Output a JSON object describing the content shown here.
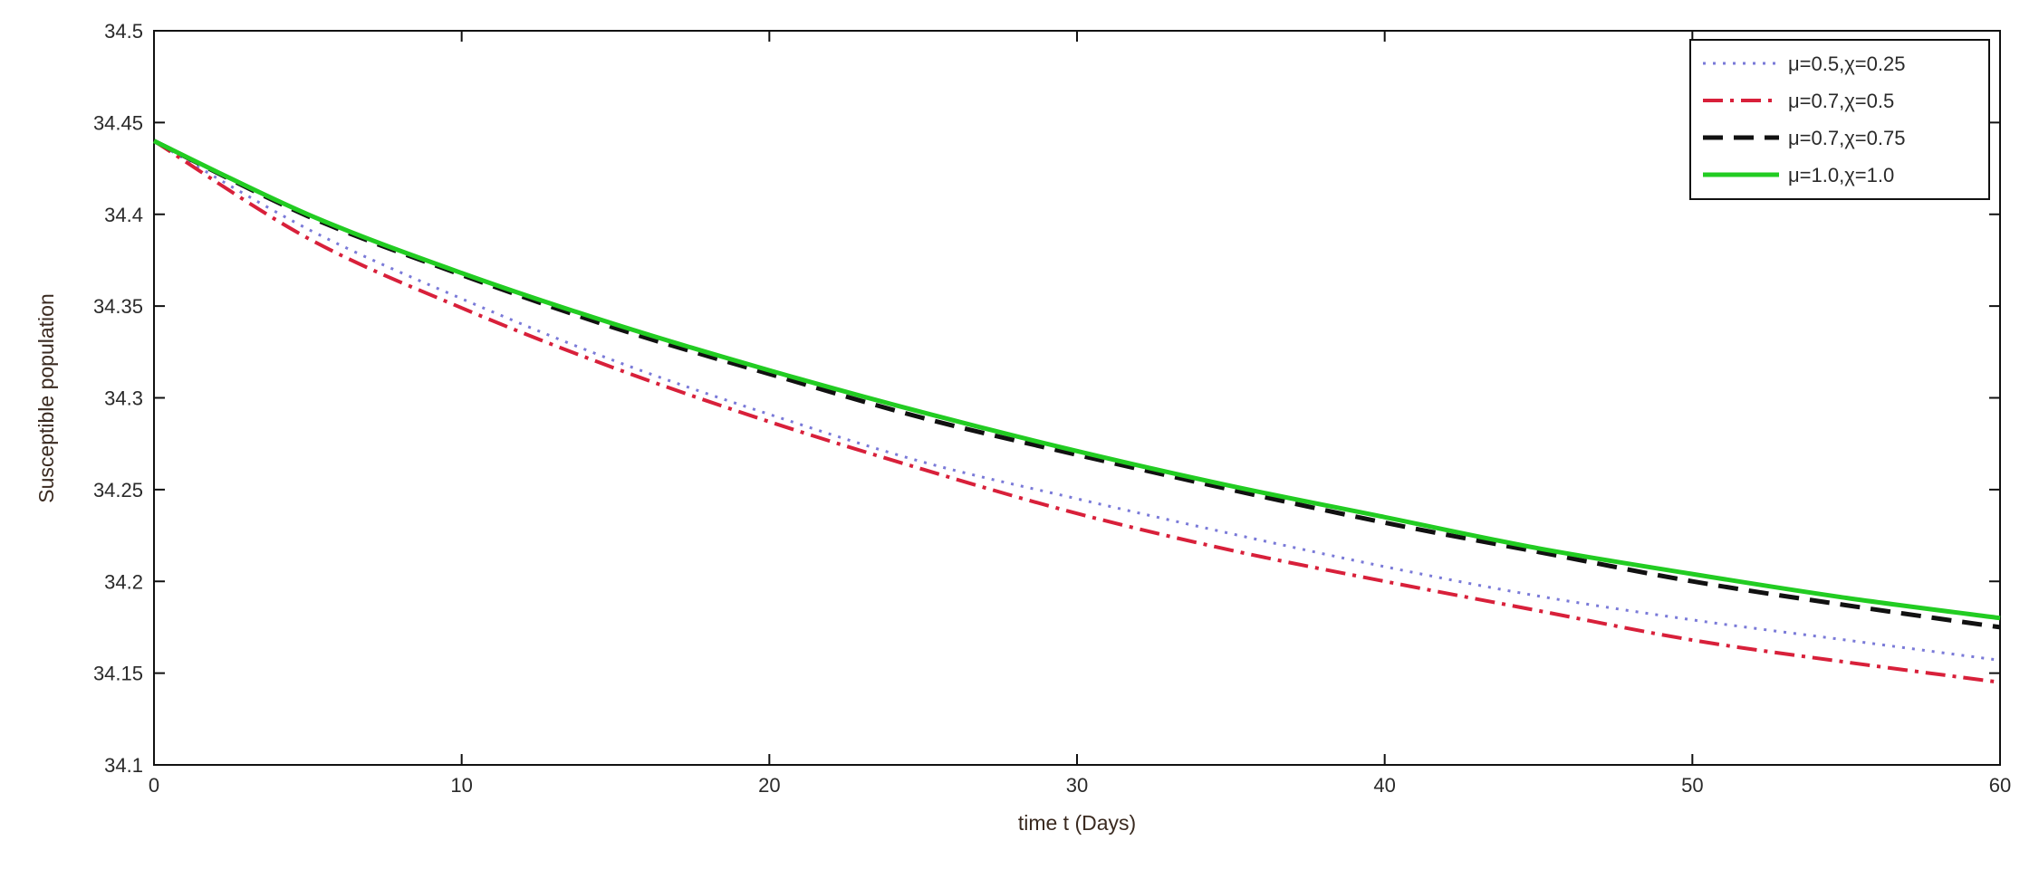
{
  "chart_data": {
    "type": "line",
    "title": "",
    "xlabel": "time t (Days)",
    "ylabel": "Susceptible population",
    "xlim": [
      0,
      60
    ],
    "ylim": [
      34.1,
      34.5
    ],
    "x_ticks": [
      0,
      10,
      20,
      30,
      40,
      50,
      60
    ],
    "y_ticks": [
      "34.1",
      "34.15",
      "34.2",
      "34.25",
      "34.3",
      "34.35",
      "34.4",
      "34.45",
      "34.5"
    ],
    "grid": false,
    "legend_position": "top-right",
    "x": [
      0,
      5,
      10,
      15,
      20,
      25,
      30,
      35,
      40,
      45,
      50,
      55,
      60
    ],
    "series": [
      {
        "name": "μ=0.5,χ=0.25",
        "color": "#7a7ad8",
        "style": "dotted",
        "values": [
          34.44,
          34.392,
          34.354,
          34.32,
          34.291,
          34.265,
          34.245,
          34.226,
          34.208,
          34.192,
          34.179,
          34.168,
          34.157
        ]
      },
      {
        "name": "μ=0.7,χ=0.5",
        "color": "#d8203a",
        "style": "dashdot",
        "values": [
          34.44,
          34.387,
          34.349,
          34.316,
          34.287,
          34.261,
          34.237,
          34.217,
          34.2,
          34.184,
          34.168,
          34.156,
          34.145
        ]
      },
      {
        "name": "μ=0.7,χ=0.75",
        "color": "#111111",
        "style": "dashed",
        "values": [
          34.44,
          34.399,
          34.367,
          34.338,
          34.313,
          34.289,
          34.269,
          34.25,
          34.232,
          34.216,
          34.2,
          34.187,
          34.175
        ]
      },
      {
        "name": "μ=1.0,χ=1.0",
        "color": "#22cc22",
        "style": "solid",
        "values": [
          34.44,
          34.4,
          34.368,
          34.34,
          34.315,
          34.292,
          34.271,
          34.252,
          34.235,
          34.218,
          34.204,
          34.191,
          34.18
        ]
      }
    ]
  }
}
